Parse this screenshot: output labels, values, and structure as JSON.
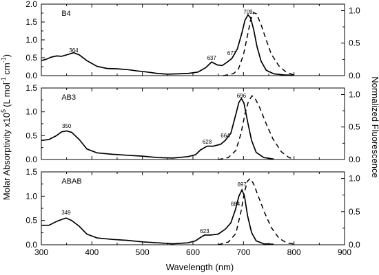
{
  "chart_data": {
    "type": "line",
    "x_axis": {
      "label": "Wavelength (nm)",
      "range": [
        300,
        900
      ],
      "ticks": [
        "300",
        "400",
        "500",
        "600",
        "700",
        "800",
        "900"
      ]
    },
    "left_axis_label": "Molar Absorptivity x10",
    "left_axis_label_sup": "5",
    "left_axis_label_unit": "(L mol",
    "left_axis_label_unit_sup1": "-1",
    "left_axis_label_unit_mid": " cm",
    "left_axis_label_unit_sup2": "-1",
    "left_axis_label_close": ")",
    "right_axis_label": "Normalized Fluorescence",
    "panels": [
      {
        "name": "B4",
        "left_range": [
          0,
          2.0
        ],
        "left_ticks": [
          "0.0",
          "0.5",
          "1.0",
          "1.5",
          "2.0"
        ],
        "right_range": [
          0,
          1.1
        ],
        "right_ticks": [
          "0.0",
          "0.5",
          "1.0"
        ],
        "peak_labels": [
          {
            "text": "364",
            "x": 364,
            "y": 0.65
          },
          {
            "text": "637",
            "x": 637,
            "y": 0.44
          },
          {
            "text": "677",
            "x": 677,
            "y": 0.58
          },
          {
            "text": "709",
            "x": 709,
            "y": 1.73
          }
        ],
        "absorbance": [
          [
            300,
            0.42
          ],
          [
            310,
            0.46
          ],
          [
            320,
            0.52
          ],
          [
            330,
            0.55
          ],
          [
            340,
            0.54
          ],
          [
            350,
            0.58
          ],
          [
            364,
            0.64
          ],
          [
            375,
            0.58
          ],
          [
            390,
            0.42
          ],
          [
            410,
            0.26
          ],
          [
            430,
            0.2
          ],
          [
            450,
            0.19
          ],
          [
            470,
            0.17
          ],
          [
            490,
            0.13
          ],
          [
            510,
            0.1
          ],
          [
            530,
            0.06
          ],
          [
            550,
            0.04
          ],
          [
            570,
            0.05
          ],
          [
            590,
            0.06
          ],
          [
            610,
            0.1
          ],
          [
            625,
            0.22
          ],
          [
            637,
            0.38
          ],
          [
            648,
            0.3
          ],
          [
            658,
            0.28
          ],
          [
            668,
            0.38
          ],
          [
            677,
            0.48
          ],
          [
            688,
            0.75
          ],
          [
            697,
            1.2
          ],
          [
            703,
            1.55
          ],
          [
            709,
            1.7
          ],
          [
            714,
            1.62
          ],
          [
            720,
            1.3
          ],
          [
            727,
            0.8
          ],
          [
            735,
            0.4
          ],
          [
            745,
            0.15
          ],
          [
            760,
            0.05
          ],
          [
            780,
            0.02
          ],
          [
            800,
            0.01
          ]
        ],
        "fluorescence": [
          [
            660,
            0.0
          ],
          [
            680,
            0.03
          ],
          [
            690,
            0.1
          ],
          [
            700,
            0.32
          ],
          [
            708,
            0.62
          ],
          [
            714,
            0.85
          ],
          [
            720,
            0.97
          ],
          [
            726,
            0.95
          ],
          [
            735,
            0.78
          ],
          [
            745,
            0.55
          ],
          [
            755,
            0.33
          ],
          [
            770,
            0.15
          ],
          [
            785,
            0.05
          ],
          [
            800,
            0.01
          ]
        ]
      },
      {
        "name": "AB3",
        "left_range": [
          0,
          1.5
        ],
        "left_ticks": [
          "0.0",
          "0.5",
          "1.0",
          "1.5"
        ],
        "right_range": [
          0,
          1.1
        ],
        "right_ticks": [
          "0.0",
          "0.5",
          "1.0"
        ],
        "peak_labels": [
          {
            "text": "350",
            "x": 350,
            "y": 0.66
          },
          {
            "text": "628",
            "x": 628,
            "y": 0.33
          },
          {
            "text": "664",
            "x": 664,
            "y": 0.46
          },
          {
            "text": "696",
            "x": 696,
            "y": 1.3
          }
        ],
        "absorbance": [
          [
            300,
            0.4
          ],
          [
            315,
            0.42
          ],
          [
            330,
            0.5
          ],
          [
            340,
            0.58
          ],
          [
            350,
            0.6
          ],
          [
            360,
            0.57
          ],
          [
            375,
            0.42
          ],
          [
            390,
            0.22
          ],
          [
            410,
            0.14
          ],
          [
            440,
            0.11
          ],
          [
            470,
            0.09
          ],
          [
            500,
            0.07
          ],
          [
            530,
            0.04
          ],
          [
            560,
            0.03
          ],
          [
            590,
            0.06
          ],
          [
            605,
            0.1
          ],
          [
            615,
            0.2
          ],
          [
            628,
            0.28
          ],
          [
            640,
            0.28
          ],
          [
            655,
            0.32
          ],
          [
            664,
            0.4
          ],
          [
            675,
            0.55
          ],
          [
            685,
            0.95
          ],
          [
            691,
            1.2
          ],
          [
            696,
            1.28
          ],
          [
            701,
            1.18
          ],
          [
            708,
            0.8
          ],
          [
            716,
            0.4
          ],
          [
            725,
            0.15
          ],
          [
            740,
            0.04
          ],
          [
            760,
            0.01
          ]
        ],
        "fluorescence": [
          [
            650,
            0.0
          ],
          [
            670,
            0.03
          ],
          [
            685,
            0.14
          ],
          [
            695,
            0.4
          ],
          [
            703,
            0.7
          ],
          [
            710,
            0.9
          ],
          [
            717,
            0.98
          ],
          [
            723,
            0.94
          ],
          [
            732,
            0.8
          ],
          [
            745,
            0.55
          ],
          [
            758,
            0.32
          ],
          [
            775,
            0.12
          ],
          [
            790,
            0.03
          ],
          [
            800,
            0.01
          ]
        ]
      },
      {
        "name": "ABAB",
        "left_range": [
          0,
          1.5
        ],
        "left_ticks": [
          "0.0",
          "0.5",
          "1.0",
          "1.5"
        ],
        "right_range": [
          0,
          1.1
        ],
        "right_ticks": [
          "0.0",
          "0.5",
          "1.0"
        ],
        "peak_labels": [
          {
            "text": "349",
            "x": 349,
            "y": 0.62
          },
          {
            "text": "623",
            "x": 623,
            "y": 0.24
          },
          {
            "text": "684",
            "x": 684,
            "y": 0.8
          },
          {
            "text": "697",
            "x": 697,
            "y": 1.2
          }
        ],
        "absorbance": [
          [
            300,
            0.4
          ],
          [
            315,
            0.4
          ],
          [
            330,
            0.48
          ],
          [
            340,
            0.52
          ],
          [
            349,
            0.55
          ],
          [
            360,
            0.5
          ],
          [
            375,
            0.38
          ],
          [
            390,
            0.22
          ],
          [
            410,
            0.14
          ],
          [
            440,
            0.11
          ],
          [
            470,
            0.09
          ],
          [
            500,
            0.06
          ],
          [
            530,
            0.04
          ],
          [
            560,
            0.02
          ],
          [
            590,
            0.04
          ],
          [
            605,
            0.08
          ],
          [
            615,
            0.15
          ],
          [
            623,
            0.2
          ],
          [
            635,
            0.2
          ],
          [
            650,
            0.22
          ],
          [
            664,
            0.32
          ],
          [
            675,
            0.45
          ],
          [
            684,
            0.72
          ],
          [
            691,
            1.0
          ],
          [
            697,
            1.13
          ],
          [
            702,
            1.0
          ],
          [
            708,
            0.6
          ],
          [
            716,
            0.25
          ],
          [
            725,
            0.08
          ],
          [
            740,
            0.02
          ],
          [
            760,
            0.01
          ]
        ],
        "fluorescence": [
          [
            650,
            0.0
          ],
          [
            670,
            0.04
          ],
          [
            685,
            0.17
          ],
          [
            695,
            0.5
          ],
          [
            702,
            0.8
          ],
          [
            708,
            0.96
          ],
          [
            713,
            1.0
          ],
          [
            720,
            0.92
          ],
          [
            730,
            0.72
          ],
          [
            742,
            0.48
          ],
          [
            755,
            0.26
          ],
          [
            770,
            0.1
          ],
          [
            785,
            0.03
          ],
          [
            800,
            0.01
          ]
        ]
      }
    ]
  }
}
